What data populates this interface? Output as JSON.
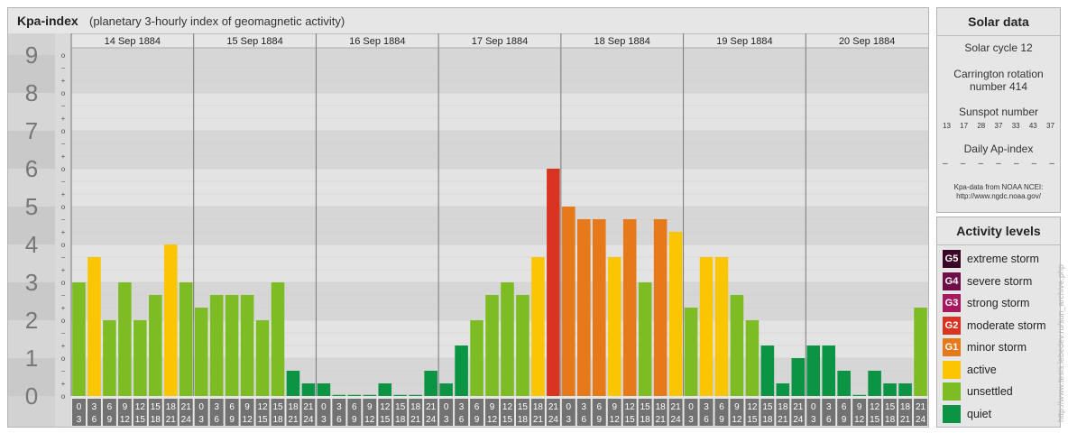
{
  "header": {
    "title": "Kpa-index",
    "subtitle": "(planetary 3-hourly index of geomagnetic activity)"
  },
  "chart_data": {
    "type": "bar",
    "ylim": [
      0,
      9
    ],
    "y_ticks": [
      "0",
      "1",
      "2",
      "3",
      "4",
      "5",
      "6",
      "7",
      "8",
      "9"
    ],
    "minor_tick_labels": [
      "o",
      "+",
      "−"
    ],
    "days": [
      "14 Sep 1884",
      "15 Sep 1884",
      "16 Sep 1884",
      "17 Sep 1884",
      "18 Sep 1884",
      "19 Sep 1884",
      "20 Sep 1884"
    ],
    "interval_labels": [
      [
        "0",
        "3"
      ],
      [
        "3",
        "6"
      ],
      [
        "6",
        "9"
      ],
      [
        "9",
        "12"
      ],
      [
        "12",
        "15"
      ],
      [
        "15",
        "18"
      ],
      [
        "18",
        "21"
      ],
      [
        "21",
        "24"
      ]
    ],
    "values": [
      [
        3.0,
        3.667,
        2.0,
        3.0,
        2.0,
        2.667,
        4.0,
        3.0
      ],
      [
        2.333,
        2.667,
        2.667,
        2.667,
        2.0,
        3.0,
        0.667,
        0.333
      ],
      [
        0.333,
        0.0,
        0.0,
        0.0,
        0.333,
        0.0,
        0.0,
        0.667
      ],
      [
        0.333,
        1.333,
        2.0,
        2.667,
        3.0,
        2.667,
        3.667,
        6.0
      ],
      [
        5.0,
        4.667,
        4.667,
        3.667,
        4.667,
        3.0,
        4.667,
        4.333
      ],
      [
        2.333,
        3.667,
        3.667,
        2.667,
        2.0,
        1.333,
        0.333,
        1.0
      ],
      [
        1.333,
        1.333,
        0.667,
        0.0,
        0.667,
        0.333,
        0.333,
        2.333
      ]
    ],
    "colors": {
      "quiet": "#0b9444",
      "unsettled": "#7dbd23",
      "active": "#fbc601",
      "minor_storm": "#e6791a",
      "moderate_storm": "#d93421",
      "strong_storm": "#a8185f",
      "severe_storm": "#6e0f4a",
      "extreme_storm": "#3b0526"
    }
  },
  "solar": {
    "title": "Solar data",
    "cycle": "Solar cycle 12",
    "carrington_line1": "Carrington rotation",
    "carrington_line2": "number 414",
    "sunspot_title": "Sunspot number",
    "sunspots": [
      "13",
      "17",
      "28",
      "37",
      "33",
      "43",
      "37"
    ],
    "ap_title": "Daily Ap-index",
    "ap_values": [
      "–",
      "–",
      "–",
      "–",
      "–",
      "–",
      "–"
    ],
    "credit_line1": "Kpa-data from NOAA NCEI:",
    "credit_line2": "http://www.ngdc.noaa.gov/"
  },
  "legend": {
    "title": "Activity levels",
    "items": [
      {
        "code": "G5",
        "label": "extreme storm",
        "color": "#3b0526"
      },
      {
        "code": "G4",
        "label": "severe storm",
        "color": "#6e0f4a"
      },
      {
        "code": "G3",
        "label": "strong storm",
        "color": "#a8185f"
      },
      {
        "code": "G2",
        "label": "moderate storm",
        "color": "#d93421"
      },
      {
        "code": "G1",
        "label": "minor storm",
        "color": "#e6791a"
      },
      {
        "code": "",
        "label": "active",
        "color": "#fbc601"
      },
      {
        "code": "",
        "label": "unsettled",
        "color": "#7dbd23"
      },
      {
        "code": "",
        "label": "quiet",
        "color": "#0b9444"
      }
    ]
  },
  "watermark": "http://www.tesis.lebedev.ru/sun_archive.php"
}
